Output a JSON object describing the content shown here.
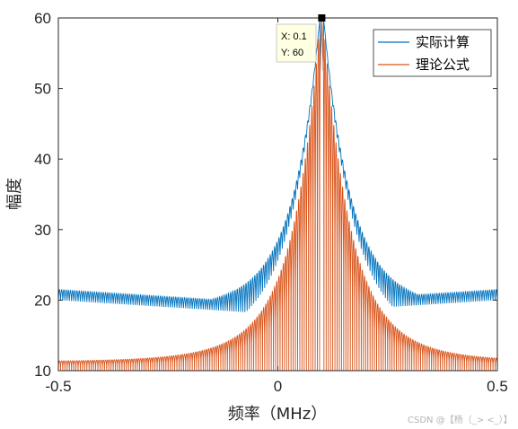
{
  "chart_data": {
    "type": "line",
    "xlabel": "频率（MHz）",
    "ylabel": "幅度",
    "xlim": [
      -0.5,
      0.5
    ],
    "ylim": [
      10,
      60
    ],
    "xticks": [
      "-0.5",
      "0",
      "0.5"
    ],
    "yticks": [
      "10",
      "20",
      "30",
      "40",
      "50",
      "60"
    ],
    "grid": false,
    "legend_position": "top-right",
    "peak_x": 0.1,
    "peak_y": 60,
    "series": [
      {
        "name": "实际计算",
        "color": "#0072BD",
        "floor_y": 18,
        "floor_y_at_edges": 20,
        "peak_y": 60
      },
      {
        "name": "理论公式",
        "color": "#D95319",
        "floor_y": 10,
        "peak_y": 60
      }
    ]
  },
  "datatip": {
    "x_text": "X: 0.1",
    "y_text": "Y: 60"
  },
  "watermark": "CSDN @【杨（_> <_）】"
}
